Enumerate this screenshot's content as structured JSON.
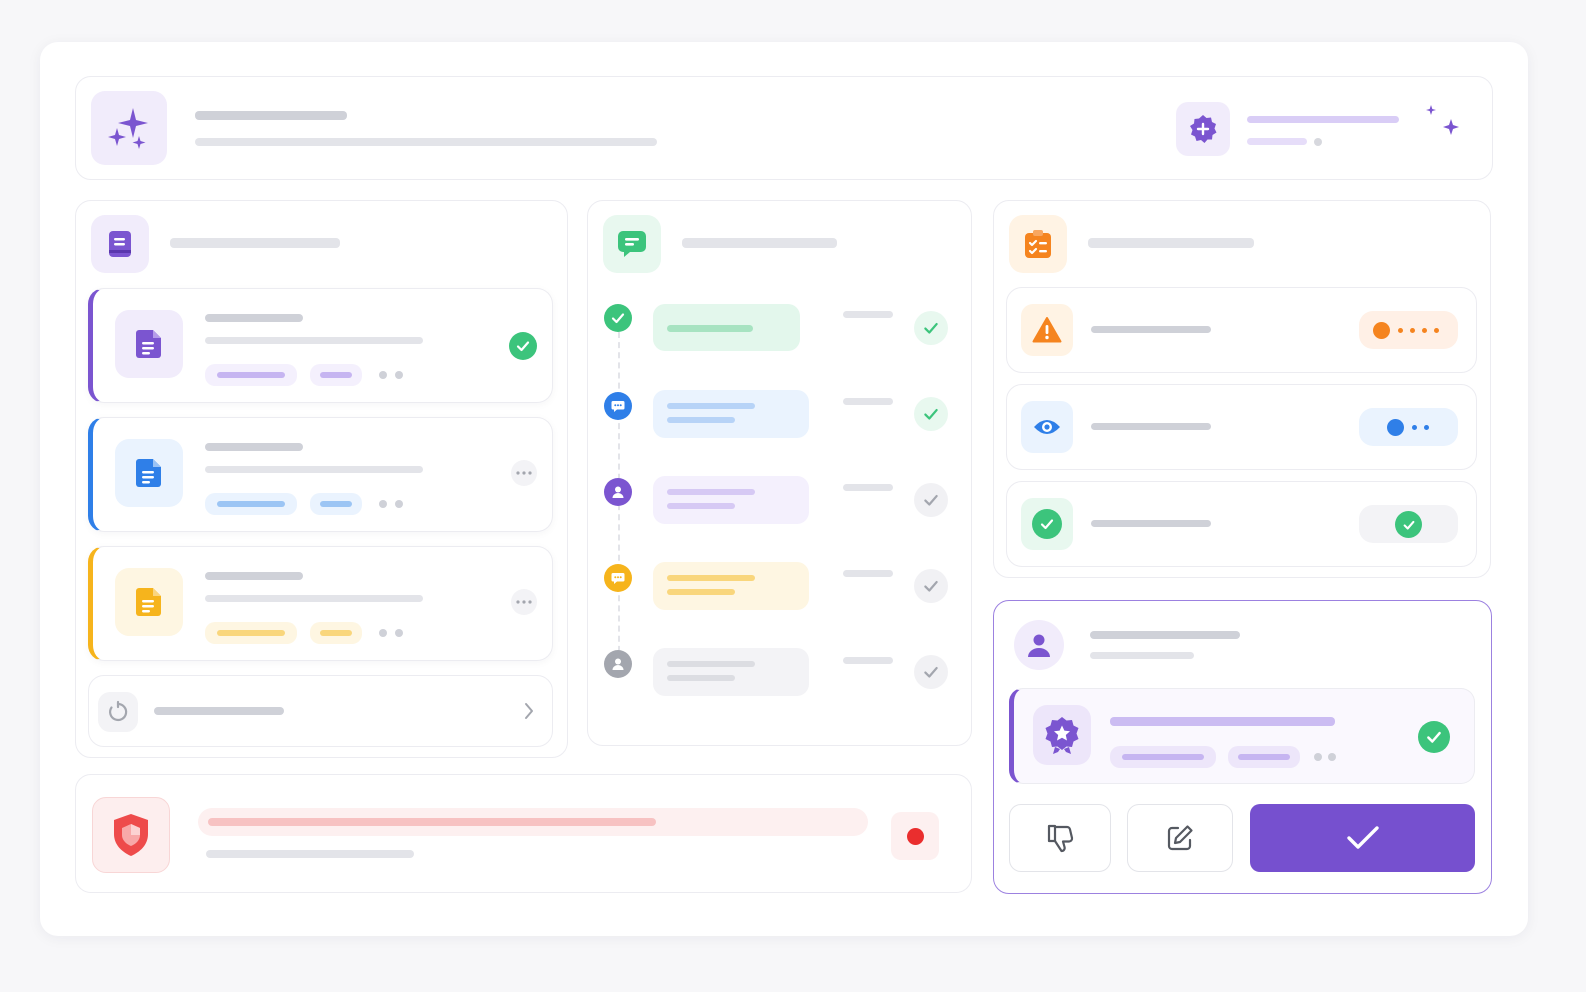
{
  "colors": {
    "purple": "#7b55d0",
    "blue": "#2f7fe8",
    "amber": "#f6b41c",
    "green": "#3cc47c",
    "orange": "#f5841f",
    "red": "#ea2e2e",
    "gray": "#a3a6ae"
  },
  "header": {
    "logo_icon": "sparkles-icon",
    "badge_icon": "plus-badge-icon"
  },
  "documents": {
    "icon": "notebook-icon",
    "items": [
      {
        "icon": "document-icon",
        "accent": "#7b55d0",
        "status_icon": "check-circle-icon"
      },
      {
        "icon": "document-icon",
        "accent": "#2f7fe8",
        "status_icon": "more-icon"
      },
      {
        "icon": "document-icon",
        "accent": "#f6b41c",
        "status_icon": "more-icon"
      }
    ],
    "footer_icon": "history-icon",
    "footer_arrow_icon": "chevron-right-icon"
  },
  "conversation": {
    "icon": "chat-icon",
    "steps": [
      {
        "icon": "check-circle-icon",
        "color": "#3cc47c",
        "status": "done"
      },
      {
        "icon": "chat-bubble-icon",
        "color": "#2f7fe8",
        "status": "done"
      },
      {
        "icon": "user-icon",
        "color": "#7b55d0",
        "status": "pending"
      },
      {
        "icon": "chat-bubble-icon",
        "color": "#f6b41c",
        "status": "pending"
      },
      {
        "icon": "user-icon",
        "color": "#a3a6ae",
        "status": "pending"
      }
    ]
  },
  "checklist": {
    "icon": "checklist-icon",
    "items": [
      {
        "icon": "warning-icon",
        "color": "#f5841f"
      },
      {
        "icon": "eye-icon",
        "color": "#2f7fe8"
      },
      {
        "icon": "check-circle-icon",
        "color": "#3cc47c"
      }
    ]
  },
  "security": {
    "icon": "shield-icon",
    "status_color": "#ea2e2e"
  },
  "approval": {
    "user_icon": "user-icon",
    "item_icon": "star-badge-icon",
    "actions": [
      {
        "name": "reject",
        "icon": "thumbs-down-icon"
      },
      {
        "name": "edit",
        "icon": "edit-icon"
      },
      {
        "name": "approve",
        "icon": "check-icon"
      }
    ]
  }
}
